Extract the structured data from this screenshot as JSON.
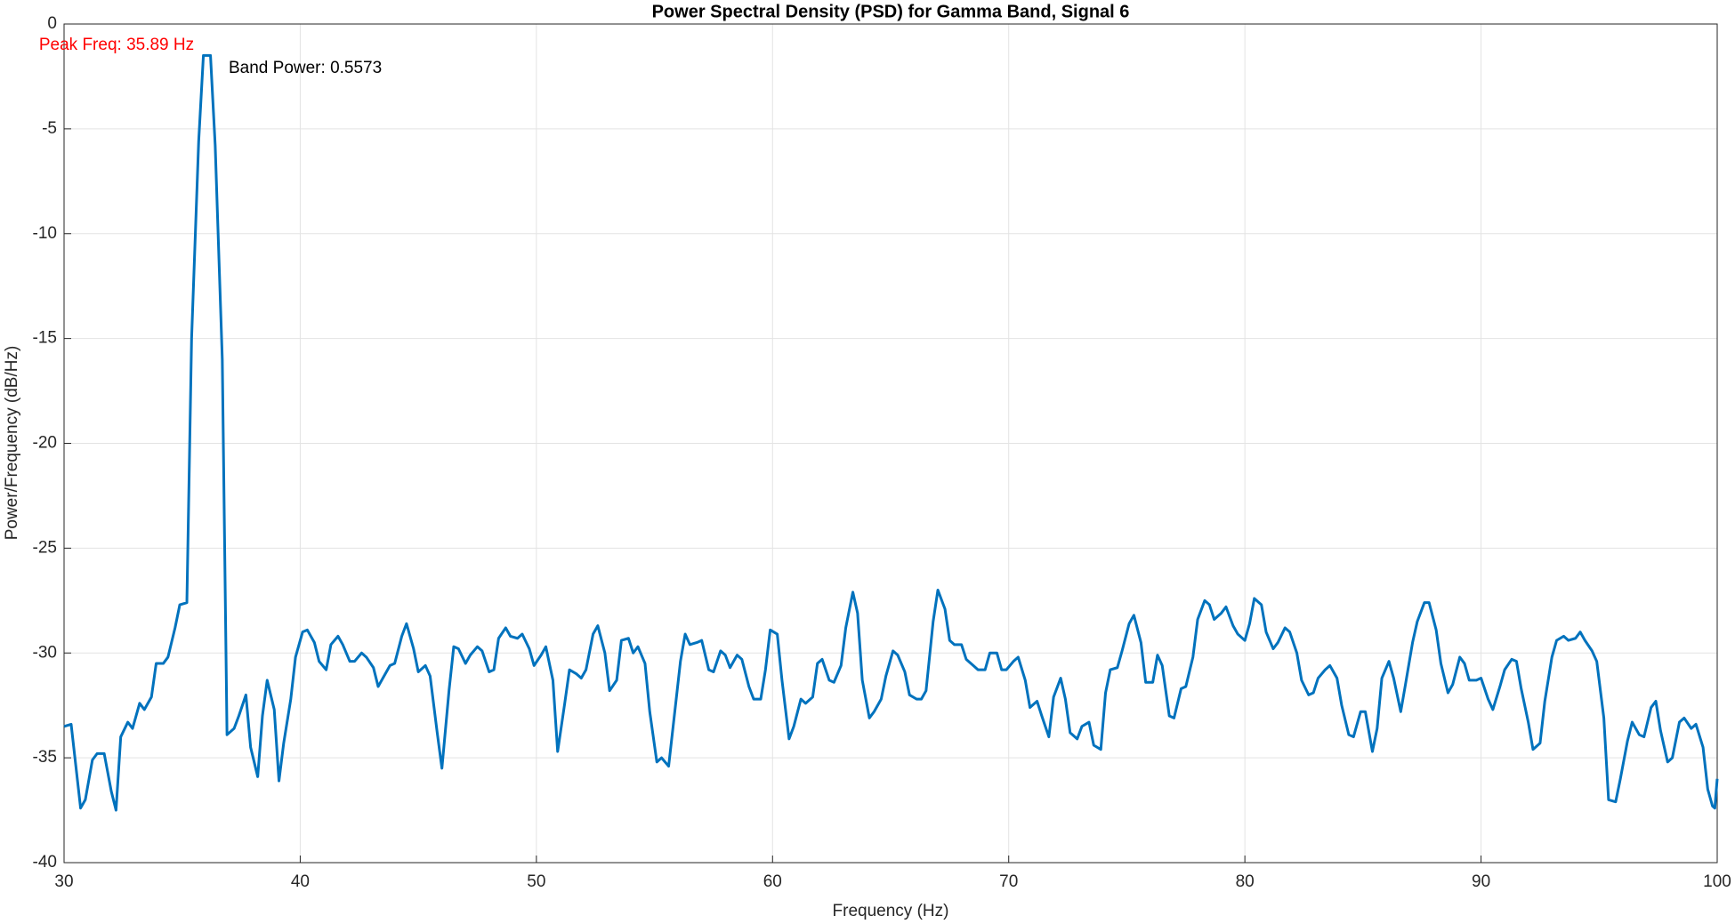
{
  "chart_data": {
    "type": "line",
    "title": "Power Spectral Density (PSD) for Gamma Band, Signal 6",
    "xlabel": "Frequency (Hz)",
    "ylabel": "Power/Frequency (dB/Hz)",
    "annotations": [
      "Peak Freq: 35.89 Hz",
      "Band Power: 0.5573"
    ],
    "color": "#0072bd",
    "grid": true,
    "xlim": [
      30,
      100
    ],
    "ylim": [
      -40,
      0
    ],
    "xticks": [
      30,
      40,
      50,
      60,
      70,
      80,
      90,
      100
    ],
    "yticks": [
      -40,
      -35,
      -30,
      -25,
      -20,
      -15,
      -10,
      -5,
      0
    ],
    "x": [
      30,
      30.3,
      30.7,
      30.9,
      31.2,
      31.4,
      31.7,
      32,
      32.2,
      32.4,
      32.7,
      32.9,
      33.2,
      33.4,
      33.7,
      33.9,
      34.2,
      34.4,
      34.7,
      34.9,
      35.2,
      35.4,
      35.7,
      35.9,
      36.2,
      36.4,
      36.7,
      36.9,
      37.2,
      37.4,
      37.7,
      37.9,
      38.2,
      38.4,
      38.6,
      38.9,
      39.1,
      39.3,
      39.6,
      39.8,
      40.1,
      40.3,
      40.6,
      40.8,
      41.1,
      41.3,
      41.6,
      41.8,
      42.1,
      42.3,
      42.6,
      42.8,
      43.1,
      43.3,
      43.5,
      43.8,
      44,
      44.3,
      44.5,
      44.8,
      45,
      45.3,
      45.5,
      45.8,
      46,
      46.3,
      46.5,
      46.7,
      47,
      47.2,
      47.5,
      47.7,
      48,
      48.2,
      48.4,
      48.7,
      48.9,
      49.2,
      49.4,
      49.7,
      49.9,
      50.2,
      50.4,
      50.7,
      50.9,
      51.2,
      51.4,
      51.7,
      51.9,
      52.1,
      52.4,
      52.6,
      52.9,
      53.1,
      53.4,
      53.6,
      53.9,
      54.1,
      54.3,
      54.6,
      54.8,
      55.1,
      55.3,
      55.6,
      55.8,
      56.1,
      56.3,
      56.5,
      56.8,
      57,
      57.3,
      57.5,
      57.8,
      58,
      58.2,
      58.5,
      58.7,
      59,
      59.2,
      59.5,
      59.7,
      59.9,
      60.2,
      60.4,
      60.7,
      60.9,
      61.2,
      61.4,
      61.7,
      61.9,
      62.1,
      62.4,
      62.6,
      62.9,
      63.1,
      63.4,
      63.6,
      63.8,
      64.1,
      64.3,
      64.6,
      64.8,
      65.1,
      65.3,
      65.6,
      65.8,
      66.1,
      66.3,
      66.5,
      66.8,
      67,
      67.3,
      67.5,
      67.7,
      68,
      68.2,
      68.5,
      68.7,
      69,
      69.2,
      69.5,
      69.7,
      69.9,
      70.2,
      70.4,
      70.7,
      70.9,
      71.2,
      71.4,
      71.7,
      71.9,
      72.2,
      72.4,
      72.6,
      72.9,
      73.1,
      73.4,
      73.6,
      73.9,
      74.1,
      74.3,
      74.6,
      74.8,
      75.1,
      75.3,
      75.6,
      75.8,
      76.1,
      76.3,
      76.5,
      76.8,
      77,
      77.3,
      77.5,
      77.8,
      78,
      78.3,
      78.5,
      78.7,
      79,
      79.2,
      79.5,
      79.7,
      80,
      80.2,
      80.4,
      80.7,
      80.9,
      81.2,
      81.4,
      81.7,
      81.9,
      82.2,
      82.4,
      82.7,
      82.9,
      83.1,
      83.4,
      83.6,
      83.9,
      84.1,
      84.4,
      84.6,
      84.9,
      85.1,
      85.4,
      85.6,
      85.8,
      86.1,
      86.3,
      86.6,
      86.8,
      87.1,
      87.3,
      87.6,
      87.8,
      88.1,
      88.3,
      88.6,
      88.8,
      89.1,
      89.3,
      89.5,
      89.8,
      90,
      90.3,
      90.5,
      90.8,
      91,
      91.3,
      91.5,
      91.7,
      92,
      92.2,
      92.5,
      92.7,
      93,
      93.2,
      93.5,
      93.7,
      94,
      94.2,
      94.4,
      94.7,
      94.9,
      95.2,
      95.4,
      95.7,
      95.9,
      96.2,
      96.4,
      96.7,
      96.9,
      97.2,
      97.4,
      97.6,
      97.9,
      98.1,
      98.4,
      98.6,
      98.9,
      99.1,
      99.4,
      99.6,
      99.8,
      99.9,
      100
    ],
    "values": [
      -33.5,
      -33.4,
      -37.4,
      -37,
      -35.1,
      -34.8,
      -34.8,
      -36.6,
      -37.5,
      -34,
      -33.3,
      -33.6,
      -32.4,
      -32.7,
      -32.1,
      -30.5,
      -30.5,
      -30.2,
      -28.8,
      -27.7,
      -27.6,
      -15,
      -5.6,
      -1.5,
      -1.5,
      -5.8,
      -16,
      -33.9,
      -33.6,
      -33,
      -32,
      -34.5,
      -35.9,
      -33,
      -31.3,
      -32.7,
      -36.1,
      -34.3,
      -32.2,
      -30.2,
      -29,
      -28.9,
      -29.5,
      -30.4,
      -30.8,
      -29.6,
      -29.2,
      -29.6,
      -30.4,
      -30.4,
      -30,
      -30.2,
      -30.7,
      -31.6,
      -31.2,
      -30.6,
      -30.5,
      -29.2,
      -28.6,
      -29.8,
      -30.9,
      -30.6,
      -31.1,
      -33.8,
      -35.5,
      -31.8,
      -29.7,
      -29.8,
      -30.5,
      -30.1,
      -29.7,
      -29.9,
      -30.9,
      -30.8,
      -29.3,
      -28.8,
      -29.2,
      -29.3,
      -29.1,
      -29.8,
      -30.6,
      -30.1,
      -29.7,
      -31.3,
      -34.7,
      -32.4,
      -30.8,
      -31,
      -31.2,
      -30.8,
      -29.1,
      -28.7,
      -30,
      -31.8,
      -31.3,
      -29.4,
      -29.3,
      -30,
      -29.7,
      -30.5,
      -32.8,
      -35.2,
      -35,
      -35.4,
      -33.4,
      -30.4,
      -29.1,
      -29.6,
      -29.5,
      -29.4,
      -30.8,
      -30.9,
      -29.9,
      -30.1,
      -30.7,
      -30.1,
      -30.3,
      -31.6,
      -32.2,
      -32.2,
      -30.8,
      -28.9,
      -29.1,
      -31.3,
      -34.1,
      -33.5,
      -32.2,
      -32.4,
      -32.1,
      -30.5,
      -30.3,
      -31.3,
      -31.4,
      -30.6,
      -28.8,
      -27.1,
      -28.1,
      -31.3,
      -33.1,
      -32.8,
      -32.2,
      -31.1,
      -29.9,
      -30.1,
      -30.9,
      -32,
      -32.2,
      -32.2,
      -31.8,
      -28.5,
      -27,
      -27.9,
      -29.4,
      -29.6,
      -29.6,
      -30.3,
      -30.6,
      -30.8,
      -30.8,
      -30,
      -30,
      -30.8,
      -30.8,
      -30.4,
      -30.2,
      -31.3,
      -32.6,
      -32.3,
      -33,
      -34,
      -32.1,
      -31.2,
      -32.2,
      -33.8,
      -34.1,
      -33.5,
      -33.3,
      -34.4,
      -34.6,
      -31.9,
      -30.8,
      -30.7,
      -29.9,
      -28.6,
      -28.2,
      -29.5,
      -31.4,
      -31.4,
      -30.1,
      -30.6,
      -33,
      -33.1,
      -31.7,
      -31.6,
      -30.2,
      -28.4,
      -27.5,
      -27.7,
      -28.4,
      -28.1,
      -27.8,
      -28.7,
      -29.1,
      -29.4,
      -28.6,
      -27.4,
      -27.7,
      -29,
      -29.8,
      -29.5,
      -28.8,
      -29,
      -30,
      -31.3,
      -32,
      -31.9,
      -31.2,
      -30.8,
      -30.6,
      -31.2,
      -32.5,
      -33.9,
      -34,
      -32.8,
      -32.8,
      -34.7,
      -33.6,
      -31.2,
      -30.4,
      -31.2,
      -32.8,
      -31.5,
      -29.5,
      -28.5,
      -27.6,
      -27.6,
      -28.9,
      -30.5,
      -31.9,
      -31.5,
      -30.2,
      -30.5,
      -31.3,
      -31.3,
      -31.2,
      -32.2,
      -32.7,
      -31.6,
      -30.8,
      -30.3,
      -30.4,
      -31.7,
      -33.3,
      -34.6,
      -34.3,
      -32.3,
      -30.2,
      -29.4,
      -29.2,
      -29.4,
      -29.3,
      -29,
      -29.4,
      -29.9,
      -30.4,
      -33.1,
      -37,
      -37.1,
      -36,
      -34.2,
      -33.3,
      -33.9,
      -34,
      -32.6,
      -32.3,
      -33.7,
      -35.2,
      -35,
      -33.3,
      -33.1,
      -33.6,
      -33.4,
      -34.5,
      -36.5,
      -37.3,
      -37.4,
      -36
    ]
  }
}
